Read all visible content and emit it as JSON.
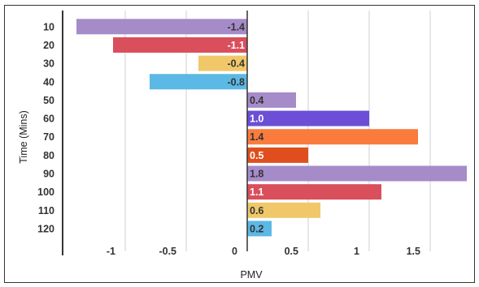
{
  "chart_data": {
    "type": "bar",
    "orientation": "horizontal",
    "title": "",
    "xlabel": "PMV",
    "ylabel": "Time (Mins)",
    "categories": [
      "10",
      "20",
      "30",
      "40",
      "50",
      "60",
      "70",
      "80",
      "90",
      "100",
      "110",
      "120"
    ],
    "values": [
      -1.4,
      -1.1,
      -0.4,
      -0.8,
      0.4,
      1.0,
      1.4,
      0.5,
      1.8,
      1.1,
      0.6,
      0.2
    ],
    "data_labels": [
      "-1.4",
      "-1.1",
      "-0.4",
      "-0.8",
      "0.4",
      "1.0",
      "1.4",
      "0.5",
      "1.8",
      "1.1",
      "0.6",
      "0.2"
    ],
    "bar_colors": [
      "#a68bc9",
      "#d94f5c",
      "#f0c86a",
      "#5cb8e4",
      "#a68bc9",
      "#6c4fd6",
      "#fa7b3e",
      "#e04e1e",
      "#a68bc9",
      "#d94f5c",
      "#f0c86a",
      "#5cb8e4"
    ],
    "label_colors": [
      "#333333",
      "#ffffff",
      "#333333",
      "#333333",
      "#333333",
      "#ffffff",
      "#333333",
      "#ffffff",
      "#333333",
      "#ffffff",
      "#333333",
      "#333333"
    ],
    "xticks": [
      -1,
      -0.5,
      0,
      0.5,
      1,
      1.5
    ],
    "xtick_labels": [
      "-1",
      "-0.5",
      "0",
      "0.5",
      "1",
      "1.5"
    ],
    "xlim": [
      -1.45,
      1.85
    ],
    "grid": true,
    "legend": "none"
  }
}
